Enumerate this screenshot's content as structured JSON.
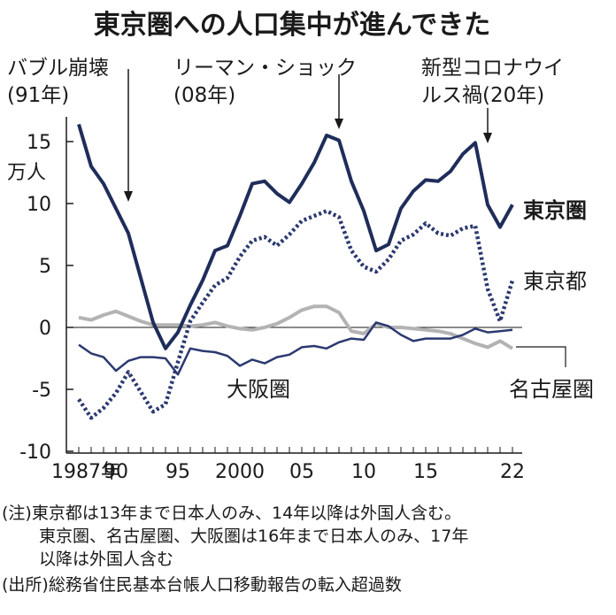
{
  "chart_data": {
    "type": "line",
    "title": "東京圏への人口集中が進んできた",
    "unit": "万人",
    "ylim": [
      -10,
      17
    ],
    "y_ticks": [
      15,
      10,
      5,
      0,
      -5,
      -10
    ],
    "y_tick_labels": [
      "15",
      "10",
      "5",
      "0",
      "-5",
      "-10"
    ],
    "x_ticks": [
      1987,
      1990,
      1995,
      2000,
      2005,
      2010,
      2015,
      2022
    ],
    "x_tick_labels": [
      "1987年",
      "90",
      "95",
      "2000",
      "05",
      "10",
      "15",
      "22"
    ],
    "x": [
      1987,
      1988,
      1989,
      1990,
      1991,
      1992,
      1993,
      1994,
      1995,
      1996,
      1997,
      1998,
      1999,
      2000,
      2001,
      2002,
      2003,
      2004,
      2005,
      2006,
      2007,
      2008,
      2009,
      2010,
      2011,
      2012,
      2013,
      2014,
      2015,
      2016,
      2017,
      2018,
      2019,
      2020,
      2021,
      2022
    ],
    "series": [
      {
        "name": "東京圏",
        "color": "#1f2d5a",
        "style": "solid",
        "values": [
          16.4,
          13.0,
          11.6,
          9.6,
          7.6,
          4.0,
          0.4,
          -1.7,
          -0.4,
          1.8,
          3.8,
          6.2,
          6.6,
          9.0,
          11.6,
          11.8,
          10.8,
          10.1,
          11.6,
          13.3,
          15.5,
          15.1,
          11.8,
          9.4,
          6.2,
          6.7,
          9.6,
          11.0,
          11.9,
          11.8,
          12.6,
          14.0,
          14.9,
          9.9,
          8.1,
          9.9
        ]
      },
      {
        "name": "東京都",
        "color": "#2b3970",
        "style": "dotted",
        "values": [
          -5.8,
          -7.3,
          -6.5,
          -5.3,
          -3.6,
          -5.2,
          -6.8,
          -6.2,
          -2.8,
          0.5,
          2.0,
          3.4,
          4.0,
          5.7,
          7.0,
          7.3,
          6.6,
          7.5,
          8.6,
          9.0,
          9.4,
          8.9,
          6.2,
          4.9,
          4.5,
          5.5,
          7.0,
          7.5,
          8.4,
          7.6,
          7.4,
          8.0,
          8.2,
          3.1,
          0.5,
          3.8
        ]
      },
      {
        "name": "大阪圏",
        "color": "#2b3970",
        "style": "solid",
        "values": [
          -1.4,
          -2.1,
          -2.4,
          -3.5,
          -2.7,
          -2.4,
          -2.4,
          -2.5,
          -3.8,
          -1.7,
          -1.9,
          -2.0,
          -2.3,
          -3.1,
          -2.6,
          -2.9,
          -2.4,
          -2.2,
          -1.6,
          -1.5,
          -1.7,
          -1.2,
          -0.9,
          -1.0,
          0.4,
          0.1,
          -0.6,
          -1.1,
          -0.9,
          -0.9,
          -0.9,
          -0.6,
          -0.1,
          -0.4,
          -0.3,
          -0.2
        ]
      },
      {
        "name": "名古屋圏",
        "color": "#b3b3b3",
        "style": "solid",
        "values": [
          0.8,
          0.6,
          1.0,
          1.3,
          0.9,
          0.5,
          0.2,
          0.2,
          0.2,
          0.1,
          0.2,
          0.4,
          0.1,
          -0.1,
          -0.2,
          0.0,
          0.3,
          0.8,
          1.4,
          1.7,
          1.7,
          1.2,
          -0.3,
          -0.5,
          0.3,
          0.0,
          0.0,
          -0.1,
          -0.2,
          -0.3,
          -0.5,
          -0.9,
          -1.3,
          -1.6,
          -1.1,
          -1.7
        ]
      }
    ],
    "annotations": [
      {
        "lines": [
          "バブル崩壊",
          "(91年)"
        ],
        "x": 1991
      },
      {
        "lines": [
          "リーマン・ショック",
          "(08年)"
        ],
        "x": 2008
      },
      {
        "lines": [
          "新型コロナウイ",
          "ルス禍(20年)"
        ],
        "x": 2020
      }
    ],
    "grid": false,
    "legend": "direct labels"
  },
  "notes": [
    "(注)東京都は13年まで日本人のみ、14年以降は外国人含む。",
    "東京圏、名古屋圏、大阪圏は16年まで日本人のみ、17年",
    "以降は外国人含む",
    "(出所)総務省住民基本台帳人口移動報告の転入超過数"
  ]
}
